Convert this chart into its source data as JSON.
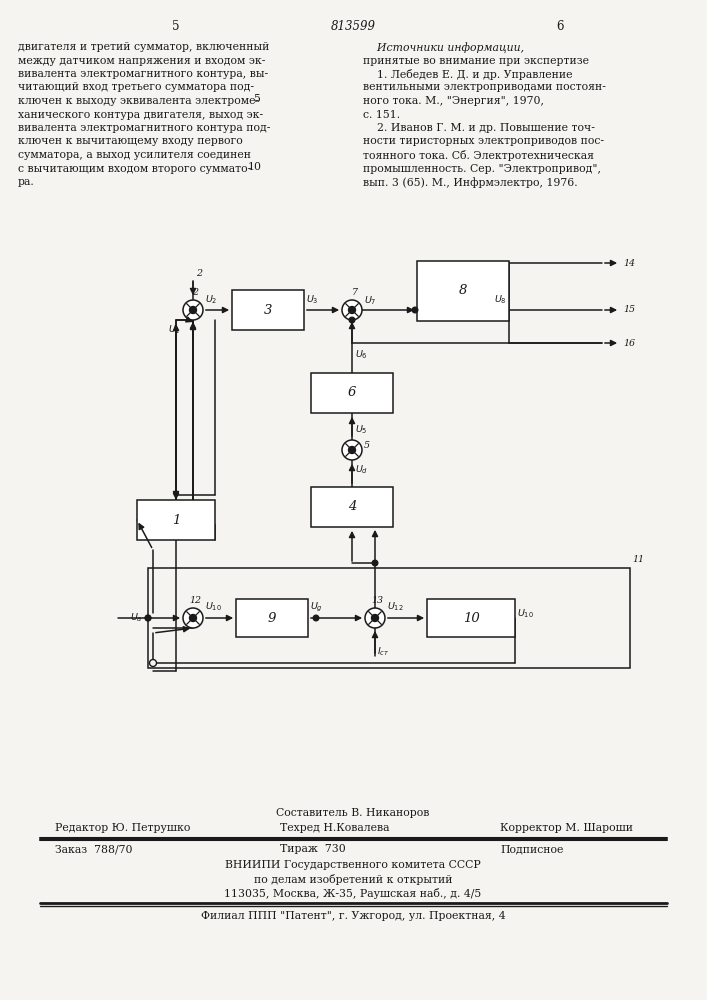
{
  "bg_color": "#f5f4f0",
  "line_color": "#1a1a1a",
  "page_num_left": "5",
  "page_num_center": "813599",
  "page_num_right": "6",
  "text_left_lines": [
    "двигателя и третий сумматор, включенный",
    "между датчиком напряжения и входом эк-",
    "вивалента электромагнитного контура, вы-",
    "читающий вход третьего сумматора под-",
    "ключен к выходу эквивалента электроме-",
    "ханического контура двигателя, выход эк-",
    "вивалента электромагнитного контура под-",
    "ключен к вычитающему входу первого",
    "сумматора, а выход усилителя соединен",
    "с вычитающим входом второго суммато-",
    "ра."
  ],
  "text_right_lines": [
    "    Источники информации,",
    "принятые во внимание при экспертизе",
    "    1. Лебедев Е. Д. и др. Управление",
    "вентильными электроприводами постоян-",
    "ного тока. М., \"Энергия\", 1970,",
    "с. 151.",
    "    2. Иванов Г. М. и др. Повышение точ-",
    "ности тиристорных электроприводов пос-",
    "тоянного тока. Сб. Электротехническая",
    "промышленность. Сер. \"Электропривод\",",
    "вып. 3 (65). М., Инфрмэлектро, 1976."
  ],
  "line_num_5_line": 4,
  "line_num_10_line": 9,
  "footer_comp": "Составитель В. Никаноров",
  "footer_editor": "Редактор Ю. Петрушко",
  "footer_tech": "Техред Н.Ковалева",
  "footer_corr": "Корректор М. Шароши",
  "footer_order": "Заказ  788/70",
  "footer_print": "Тираж  730",
  "footer_sign": "Подписное",
  "footer_org1": "ВНИИПИ Государственного комитета СССР",
  "footer_org2": "по делам изобретений к открытий",
  "footer_org3": "113035, Москва, Ж-35, Раушская наб., д. 4/5",
  "footer_branch": "Филиал ППП \"Патент\", г. Ужгород, ул. Проектная, 4"
}
